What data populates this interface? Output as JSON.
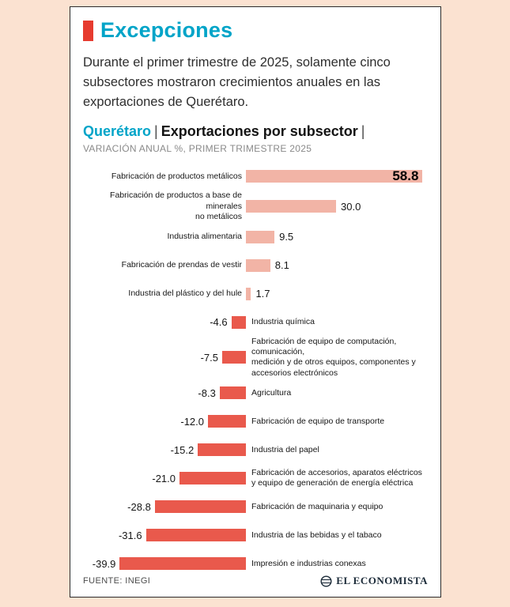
{
  "card": {
    "title": "Excepciones",
    "intro": "Durante el primer trimestre de 2025, solamente cinco subsectores mostraron crecimientos anuales en las exportaciones de Querétaro.",
    "chart_header": {
      "region": "Querétaro",
      "separator": "|",
      "subject": "Exportaciones por subsector",
      "trailing_separator": "|",
      "subtitle": "VARIACIÓN ANUAL %, PRIMER TRIMESTRE 2025"
    },
    "footer": {
      "source": "FUENTE: INEGI",
      "brand": "EL ECONOMISTA"
    }
  },
  "chart_data": {
    "type": "bar",
    "orientation": "horizontal",
    "title": "Querétaro | Exportaciones por subsector",
    "subtitle": "VARIACIÓN ANUAL %, PRIMER TRIMESTRE 2025",
    "unit": "%",
    "baseline": 0,
    "xlim": [
      -45,
      60
    ],
    "grid": false,
    "legend": "none",
    "colors": {
      "positive_bar": "#f2b4a6",
      "negative_bar": "#e9594c",
      "accent_red": "#e63b2f",
      "accent_cyan": "#00a4c8"
    },
    "categories": [
      "Fabricación de productos metálicos",
      "Fabricación de productos a base de minerales\nno metálicos",
      "Industria alimentaria",
      "Fabricación de prendas de vestir",
      "Industria del plástico y del hule",
      "Industria química",
      "Fabricación de equipo de computación, comunicación,\nmedición y de otros equipos, componentes y\naccesorios electrónicos",
      "Agricultura",
      "Fabricación de equipo de transporte",
      "Industria del papel",
      "Fabricación de accesorios, aparatos eléctricos\ny equipo de generación de energía eléctrica",
      "Fabricación de maquinaria y equipo",
      "Industria de las bebidas y el tabaco",
      "Impresión e industrias conexas"
    ],
    "values": [
      58.8,
      30.0,
      9.5,
      8.1,
      1.7,
      -4.6,
      -7.5,
      -8.3,
      -12.0,
      -15.2,
      -21.0,
      -28.8,
      -31.6,
      -39.9
    ],
    "value_labels": [
      "58.8",
      "30.0",
      "9.5",
      "8.1",
      "1.7",
      "-4.6",
      "-7.5",
      "-8.3",
      "-12.0",
      "-15.2",
      "-21.0",
      "-28.8",
      "-31.6",
      "-39.9"
    ],
    "source": "FUENTE: INEGI"
  }
}
